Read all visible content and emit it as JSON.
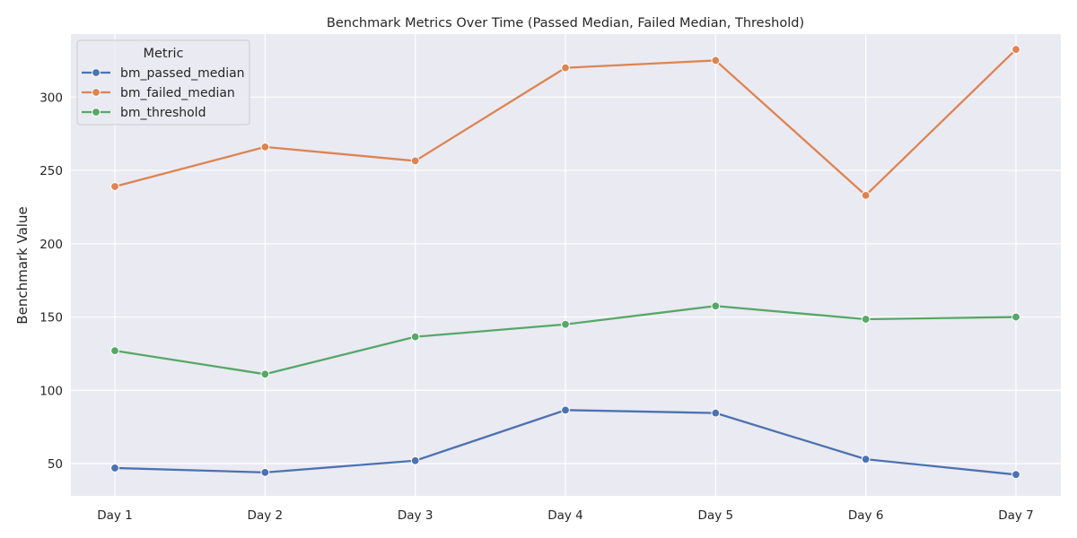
{
  "chart_data": {
    "type": "line",
    "title": "Benchmark Metrics Over Time (Passed Median, Failed Median, Threshold)",
    "xlabel": "",
    "ylabel": "Benchmark Value",
    "categories": [
      "Day 1",
      "Day 2",
      "Day 3",
      "Day 4",
      "Day 5",
      "Day 6",
      "Day 7"
    ],
    "ylim": [
      28,
      343
    ],
    "yticks": [
      50,
      100,
      150,
      200,
      250,
      300
    ],
    "grid": true,
    "legend": {
      "title": "Metric",
      "placement": "top-left"
    },
    "series": [
      {
        "name": "bm_passed_median",
        "color": "#4c72b0",
        "values": [
          47,
          44,
          52,
          86.5,
          84.5,
          53,
          42.5
        ]
      },
      {
        "name": "bm_failed_median",
        "color": "#dd8452",
        "values": [
          239,
          266,
          256.5,
          320,
          325,
          233,
          332.5
        ]
      },
      {
        "name": "bm_threshold",
        "color": "#55a868",
        "values": [
          127,
          111,
          136.5,
          145,
          157.5,
          148.5,
          150
        ]
      }
    ]
  }
}
